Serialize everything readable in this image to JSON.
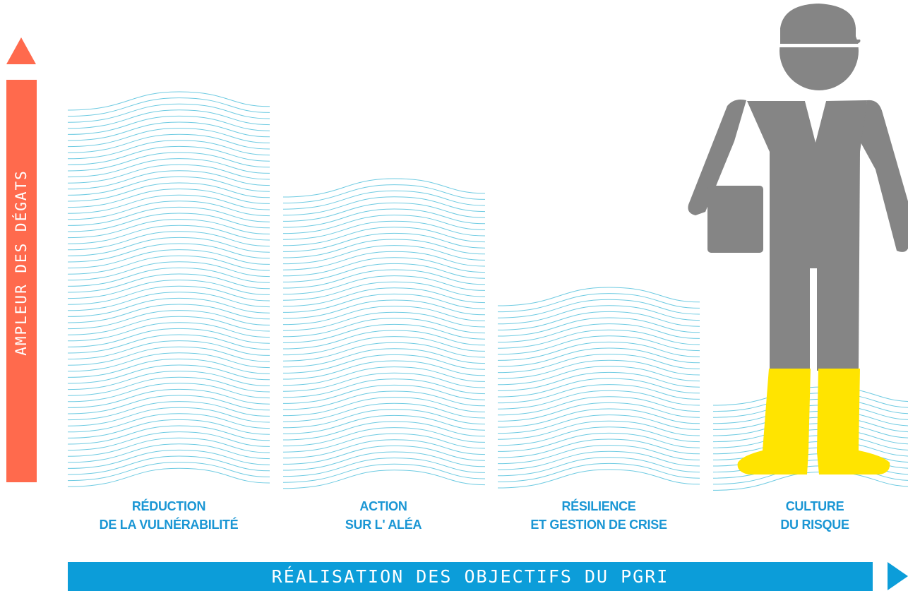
{
  "y_axis": {
    "label": "AMPLEUR DES DÉGATS"
  },
  "x_axis": {
    "label": "RÉALISATION DES OBJECTIFS DU PGRI"
  },
  "categories": [
    {
      "line1": "RÉDUCTION",
      "line2": "DE LA VULNÉRABILITÉ"
    },
    {
      "line1": "ACTION",
      "line2": "SUR L' ALÉA"
    },
    {
      "line1": "RÉSILIENCE",
      "line2": "ET GESTION DE CRISE"
    },
    {
      "line1": "CULTURE",
      "line2": "DU RISQUE"
    }
  ],
  "colors": {
    "damage_axis": "#ff6a4d",
    "progress_axis": "#0c9dd9",
    "labels": "#1a96d4",
    "water_lines": "#6fcbe2",
    "figure": "#858585",
    "boots": "#ffe400"
  },
  "icons": [
    "person-in-boots-icon",
    "flood-water-lines"
  ]
}
